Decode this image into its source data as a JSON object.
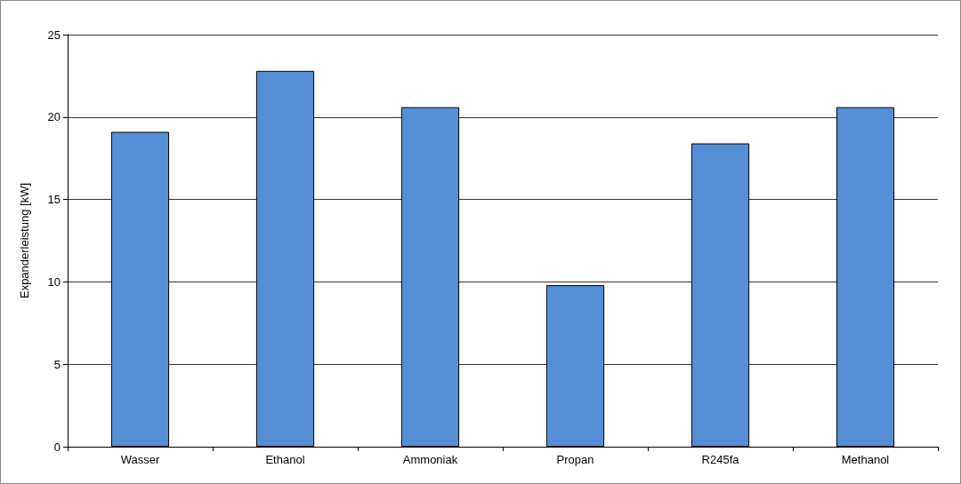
{
  "chart_data": {
    "type": "bar",
    "ylabel": "Expanderleistung [kW]",
    "categories": [
      "Wasser",
      "Ethanol",
      "Ammoniak",
      "Propan",
      "R245fa",
      "Methanol"
    ],
    "values": [
      19.1,
      22.8,
      20.6,
      9.8,
      18.4,
      20.6
    ],
    "color": "#558ed5",
    "ylim": [
      0,
      25
    ],
    "yticks": [
      0,
      5,
      10,
      15,
      20,
      25
    ],
    "grid": "y"
  }
}
